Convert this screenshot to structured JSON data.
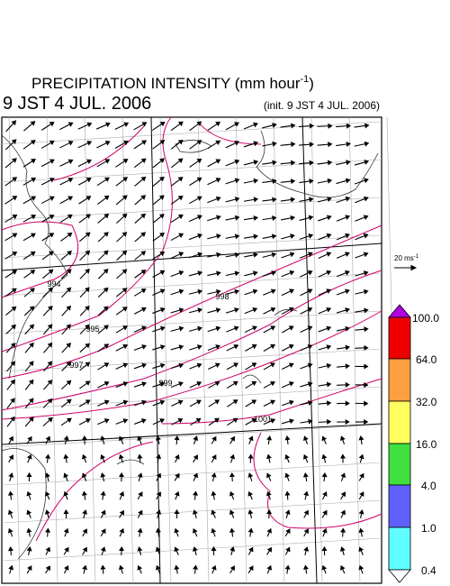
{
  "header": {
    "title": "PRECIPITATION INTENSITY (mm hour",
    "title_exponent": "-1",
    "title_close": ")",
    "valid_time": "9 JST 4 JUL. 2006",
    "init_time": "(init. 9 JST 4 JUL. 2006)"
  },
  "reference_vector": {
    "label": "20 ms",
    "exponent": "-1"
  },
  "colorbar": {
    "labels": [
      "100.0",
      "64.0",
      "32.0",
      "16.0",
      "4.0",
      "1.0",
      "0.4"
    ]
  },
  "contours": {
    "labels": [
      "994",
      "995",
      "998",
      "997",
      "999",
      "1001"
    ]
  }
}
